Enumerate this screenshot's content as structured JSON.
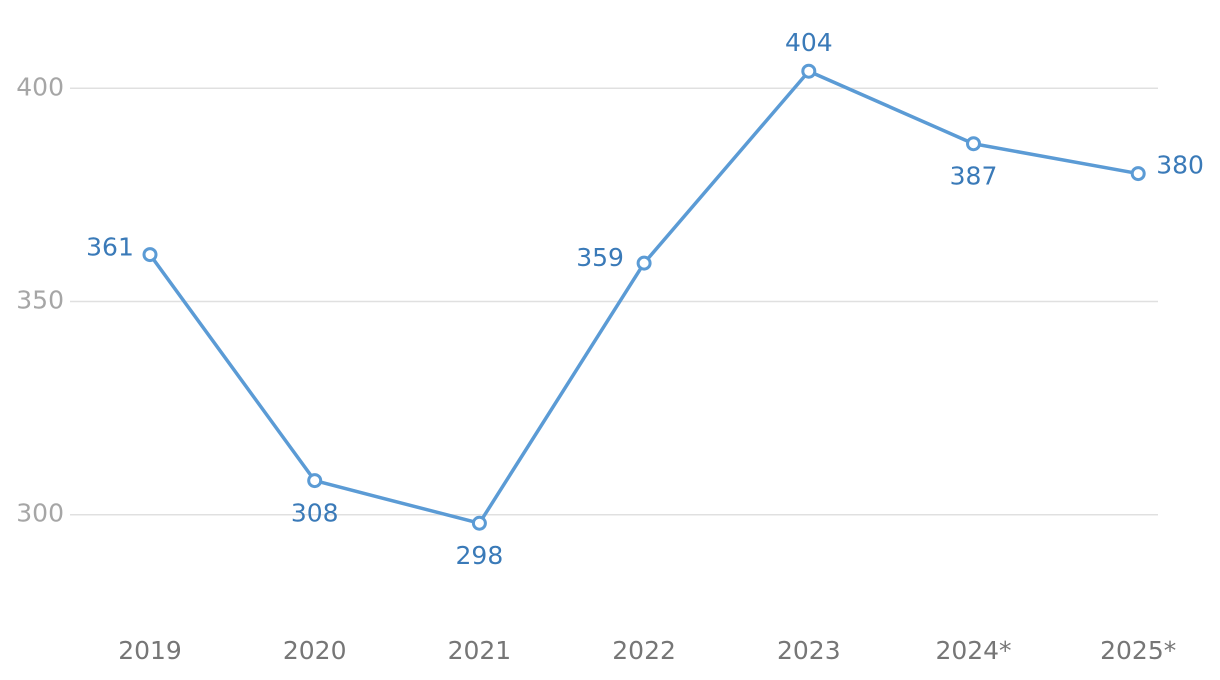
{
  "chart_data": {
    "type": "line",
    "categories": [
      "2019",
      "2020",
      "2021",
      "2022",
      "2023",
      "2024*",
      "2025*"
    ],
    "series": [
      {
        "color": "#5b9bd5",
        "values": [
          361,
          308,
          298,
          359,
          404,
          387,
          380
        ]
      }
    ],
    "ylim": [
      280,
      420
    ],
    "yticks": [
      300,
      350,
      400
    ],
    "grid": true
  }
}
